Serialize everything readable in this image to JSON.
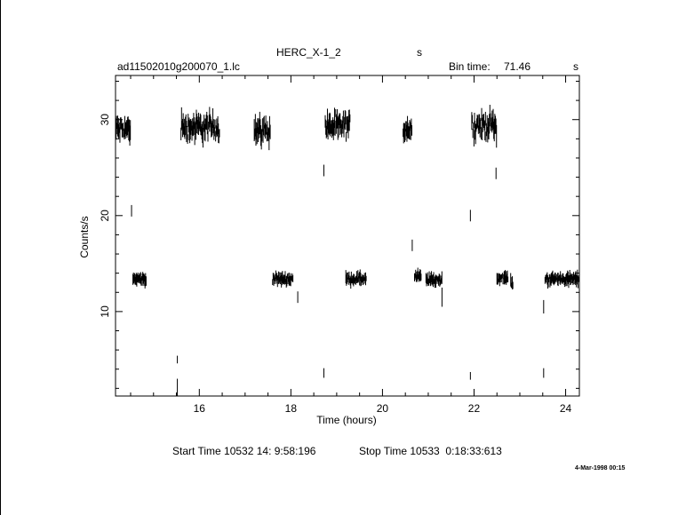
{
  "header": {
    "object": "HERC_X-1_2",
    "s_label": "s",
    "filename": "ad11502010g200070_1.lc",
    "bin_label": "Bin time:",
    "bin_value": "71.46",
    "bin_unit": "s"
  },
  "footer": {
    "start_label": "Start Time 10532 14: 9:58:196",
    "stop_label": "Stop Time 10533  0:18:33:613",
    "plot_date": "4-Mar-1998 00:15"
  },
  "chart_data": {
    "type": "scatter",
    "title": "HERC_X-1_2",
    "xlabel": "Time (hours)",
    "ylabel": "Counts/s",
    "xlim": [
      14.17,
      24.3
    ],
    "ylim": [
      1.2,
      34.6
    ],
    "x_ticks": [
      16,
      18,
      20,
      22,
      24
    ],
    "y_ticks": [
      10,
      20,
      30
    ],
    "x_tick_labels": [
      "16",
      "18",
      "20",
      "22",
      "24"
    ],
    "y_tick_labels": [
      "10",
      "20",
      "30"
    ],
    "grid": false,
    "high_segments": [
      {
        "x0": 14.17,
        "x1": 14.5,
        "mean": 29.0,
        "spread": 1.4
      },
      {
        "x0": 15.6,
        "x1": 16.45,
        "mean": 29.2,
        "spread": 1.6
      },
      {
        "x0": 17.2,
        "x1": 17.55,
        "mean": 28.9,
        "spread": 1.4
      },
      {
        "x0": 18.75,
        "x1": 19.3,
        "mean": 29.3,
        "spread": 1.5
      },
      {
        "x0": 20.45,
        "x1": 20.65,
        "mean": 29.1,
        "spread": 1.3
      },
      {
        "x0": 21.95,
        "x1": 22.5,
        "mean": 29.4,
        "spread": 1.5
      }
    ],
    "low_segments": [
      {
        "x0": 14.55,
        "x1": 14.85,
        "mean": 13.4,
        "spread": 0.5
      },
      {
        "x0": 17.6,
        "x1": 18.05,
        "mean": 13.4,
        "spread": 0.5
      },
      {
        "x0": 19.2,
        "x1": 19.65,
        "mean": 13.4,
        "spread": 0.5
      },
      {
        "x0": 20.7,
        "x1": 20.85,
        "mean": 13.6,
        "spread": 0.6
      },
      {
        "x0": 20.95,
        "x1": 21.3,
        "mean": 13.3,
        "spread": 0.5
      },
      {
        "x0": 22.5,
        "x1": 22.75,
        "mean": 13.5,
        "spread": 0.5
      },
      {
        "x0": 22.8,
        "x1": 22.85,
        "mean": 12.9,
        "spread": 0.6
      },
      {
        "x0": 23.55,
        "x1": 24.3,
        "mean": 13.4,
        "spread": 0.5
      }
    ],
    "isolated_points": [
      {
        "x": 14.52,
        "y": 20.5,
        "err": 0.6
      },
      {
        "x": 15.52,
        "y": 2.1,
        "err": 0.9
      },
      {
        "x": 15.52,
        "y": 5.0,
        "err": 0.4
      },
      {
        "x": 18.15,
        "y": 11.5,
        "err": 0.6
      },
      {
        "x": 18.72,
        "y": 24.7,
        "err": 0.6
      },
      {
        "x": 18.72,
        "y": 3.6,
        "err": 0.5
      },
      {
        "x": 20.65,
        "y": 16.9,
        "err": 0.6
      },
      {
        "x": 21.3,
        "y": 11.5,
        "err": 1.0
      },
      {
        "x": 21.92,
        "y": 20.0,
        "err": 0.6
      },
      {
        "x": 21.92,
        "y": 3.3,
        "err": 0.4
      },
      {
        "x": 22.48,
        "y": 24.4,
        "err": 0.6
      },
      {
        "x": 23.52,
        "y": 10.5,
        "err": 0.7
      },
      {
        "x": 23.52,
        "y": 3.6,
        "err": 0.5
      }
    ]
  }
}
